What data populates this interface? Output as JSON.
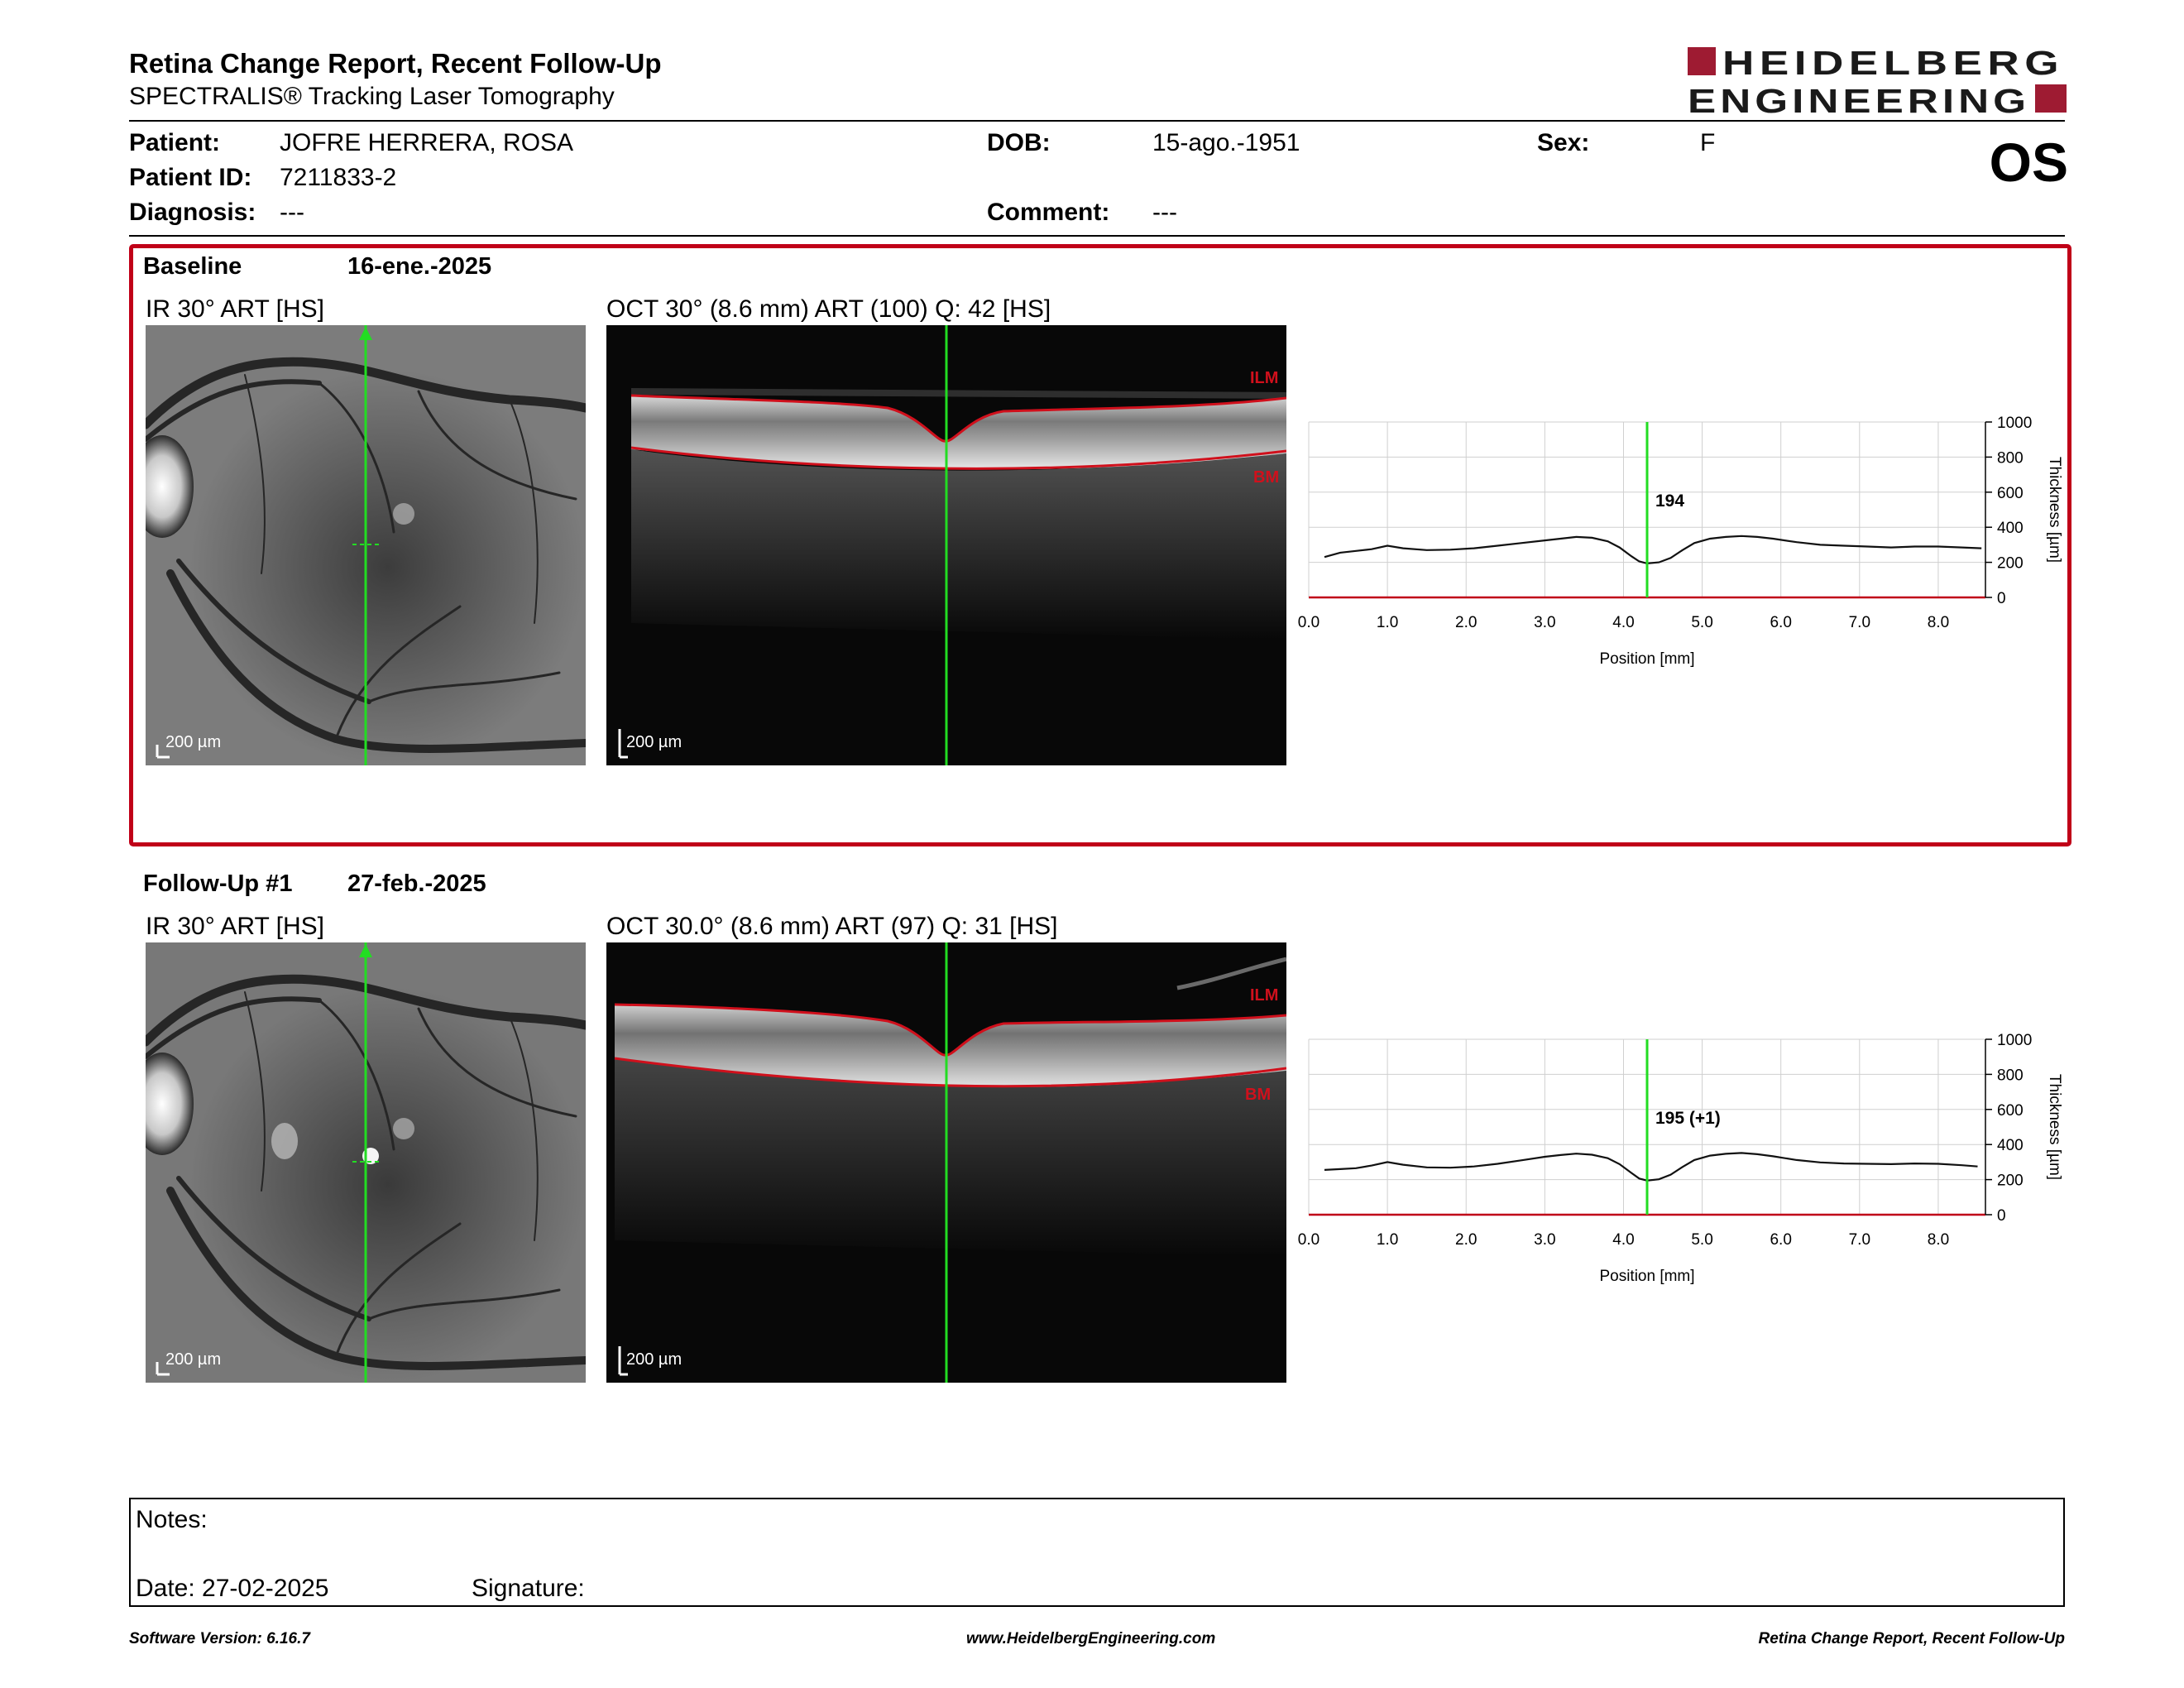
{
  "header": {
    "title": "Retina Change Report, Recent Follow-Up",
    "subtitle": "SPECTRALIS® Tracking Laser Tomography",
    "logo_line1": "HEIDELBERG",
    "logo_line2": "ENGINEERING",
    "eye": "OS"
  },
  "patient": {
    "name_label": "Patient:",
    "name": "JOFRE HERRERA, ROSA",
    "id_label": "Patient ID:",
    "id": "7211833-2",
    "diagnosis_label": "Diagnosis:",
    "diagnosis": "---",
    "dob_label": "DOB:",
    "dob": "15-ago.-1951",
    "comment_label": "Comment:",
    "comment": "---",
    "sex_label": "Sex:",
    "sex": "F"
  },
  "baseline": {
    "label": "Baseline",
    "date": "16-ene.-2025",
    "ir_caption": "IR 30° ART [HS]",
    "oct_caption": "OCT 30° (8.6 mm) ART (100) Q: 42 [HS]",
    "scale_ir": "200 µm",
    "scale_oct": "200 µm",
    "ilm_label": "ILM",
    "bm_label": "BM",
    "cursor_value": "194"
  },
  "followup": {
    "label": "Follow-Up #1",
    "date": "27-feb.-2025",
    "ir_caption": "IR 30° ART [HS]",
    "oct_caption": "OCT 30.0° (8.6 mm) ART (97) Q: 31 [HS]",
    "scale_ir": "200 µm",
    "scale_oct": "200 µm",
    "ilm_label": "ILM",
    "bm_label": "BM",
    "cursor_value": "195 (+1)"
  },
  "chart_data": [
    {
      "type": "line",
      "xlabel": "Position [mm]",
      "ylabel": "Thickness [µm]",
      "xlim": [
        0,
        8.6
      ],
      "ylim": [
        0,
        1000
      ],
      "xticks": [
        "0.0",
        "1.0",
        "2.0",
        "3.0",
        "4.0",
        "5.0",
        "6.0",
        "7.0",
        "8.0"
      ],
      "yticks": [
        "0",
        "200",
        "400",
        "600",
        "800",
        "1000"
      ],
      "cursor_x": 4.3,
      "cursor_label": "194",
      "grid": true,
      "series": [
        {
          "x": [
            0.2,
            0.4,
            0.6,
            0.8,
            1.0,
            1.2,
            1.5,
            1.8,
            2.1,
            2.4,
            2.7,
            3.0,
            3.2,
            3.4,
            3.6,
            3.8,
            3.95,
            4.1,
            4.2,
            4.3,
            4.45,
            4.6,
            4.75,
            4.9,
            5.1,
            5.3,
            5.5,
            5.7,
            5.9,
            6.2,
            6.5,
            6.8,
            7.1,
            7.4,
            7.7,
            8.0,
            8.3,
            8.55
          ],
          "y": [
            230,
            255,
            265,
            275,
            295,
            280,
            270,
            272,
            280,
            295,
            310,
            325,
            335,
            345,
            340,
            320,
            285,
            235,
            205,
            194,
            200,
            225,
            270,
            310,
            335,
            345,
            350,
            345,
            335,
            315,
            300,
            295,
            290,
            285,
            290,
            290,
            285,
            280
          ]
        }
      ]
    },
    {
      "type": "line",
      "xlabel": "Position [mm]",
      "ylabel": "Thickness [µm]",
      "xlim": [
        0,
        8.6
      ],
      "ylim": [
        0,
        1000
      ],
      "xticks": [
        "0.0",
        "1.0",
        "2.0",
        "3.0",
        "4.0",
        "5.0",
        "6.0",
        "7.0",
        "8.0"
      ],
      "yticks": [
        "0",
        "200",
        "400",
        "600",
        "800",
        "1000"
      ],
      "cursor_x": 4.3,
      "cursor_label": "195 (+1)",
      "grid": true,
      "series": [
        {
          "x": [
            0.2,
            0.4,
            0.6,
            0.8,
            1.0,
            1.2,
            1.5,
            1.8,
            2.1,
            2.4,
            2.7,
            3.0,
            3.2,
            3.4,
            3.6,
            3.8,
            3.95,
            4.1,
            4.2,
            4.3,
            4.45,
            4.6,
            4.75,
            4.9,
            5.1,
            5.3,
            5.5,
            5.7,
            5.9,
            6.2,
            6.5,
            6.8,
            7.1,
            7.4,
            7.7,
            8.0,
            8.3,
            8.5
          ],
          "y": [
            255,
            260,
            265,
            280,
            300,
            285,
            270,
            268,
            275,
            290,
            310,
            330,
            340,
            348,
            342,
            322,
            288,
            238,
            206,
            195,
            202,
            228,
            272,
            312,
            337,
            347,
            352,
            345,
            333,
            312,
            298,
            292,
            290,
            288,
            292,
            290,
            282,
            275
          ]
        }
      ]
    }
  ],
  "notes": {
    "notes_label": "Notes:",
    "date_label": "Date: 27-02-2025",
    "signature_label": "Signature:"
  },
  "footer": {
    "software": "Software Version: 6.16.7",
    "website": "www.HeidelbergEngineering.com",
    "report": "Retina Change Report, Recent Follow-Up"
  },
  "colors": {
    "accent": "#c00018",
    "cursor": "#22dd22",
    "logo": "#1a1a1a"
  }
}
